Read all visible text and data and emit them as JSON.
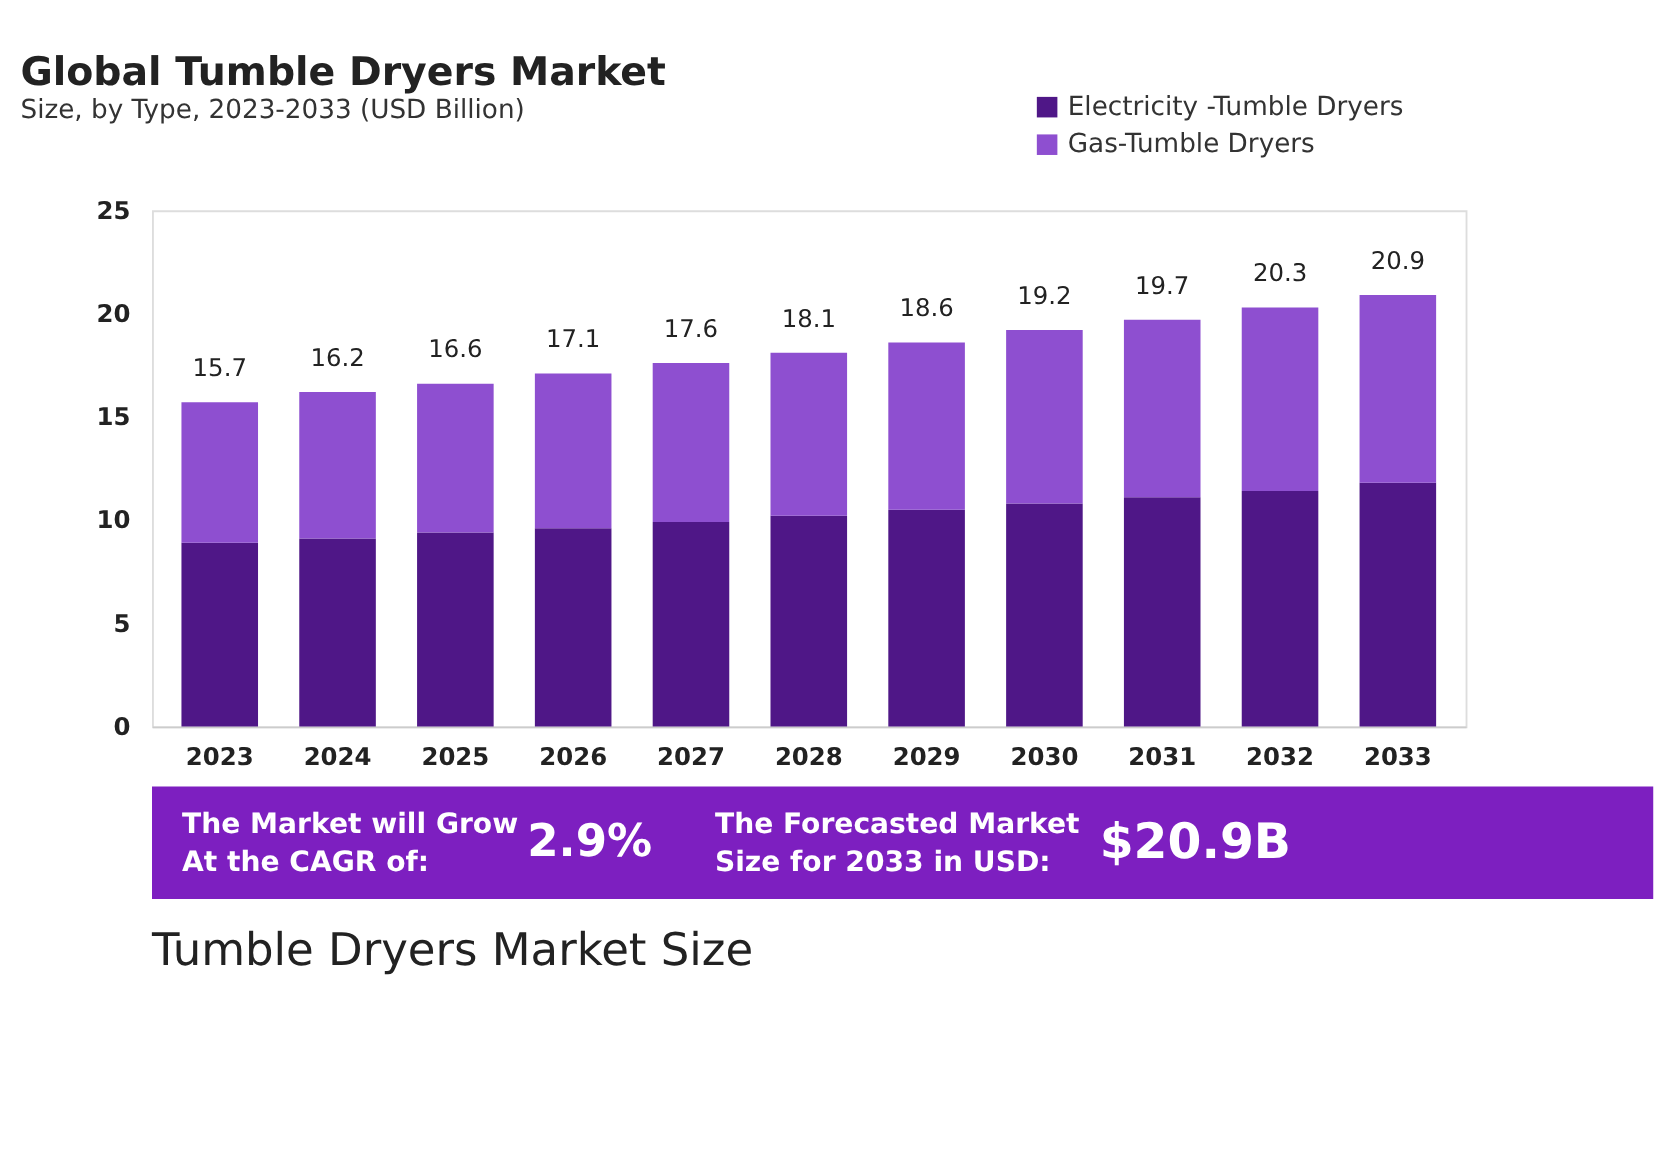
{
  "chart_data": {
    "type": "bar",
    "stacked": true,
    "title": "Global Tumble Dryers Market",
    "subtitle": "Size, by Type, 2023-2033 (USD Billion)",
    "categories": [
      "2023",
      "2024",
      "2025",
      "2026",
      "2027",
      "2028",
      "2029",
      "2030",
      "2031",
      "2032",
      "2033"
    ],
    "series": [
      {
        "name": "Electricity -Tumble Dryers",
        "color": "#4f1787",
        "values": [
          8.9,
          9.1,
          9.4,
          9.6,
          9.9,
          10.2,
          10.5,
          10.8,
          11.1,
          11.4,
          11.8
        ]
      },
      {
        "name": "Gas-Tumble Dryers",
        "color": "#8e4fd0",
        "values": [
          6.8,
          7.1,
          7.2,
          7.5,
          7.7,
          7.9,
          8.1,
          8.4,
          8.6,
          8.9,
          9.1
        ]
      }
    ],
    "totals": [
      "15.7",
      "16.2",
      "16.6",
      "17.1",
      "17.6",
      "18.1",
      "18.6",
      "19.2",
      "19.7",
      "20.3",
      "20.9"
    ],
    "ylim": [
      0,
      25
    ],
    "yticks": [
      0,
      5,
      10,
      15,
      20,
      25
    ],
    "grid": false,
    "legend": "top right",
    "annotations": [
      "The Market will Grow\nAt the CAGR of:",
      "2.9%",
      "The Forecasted Market\nSize for 2033 in USD:",
      "$20.9B",
      "Tumble Dryers Market Size"
    ]
  }
}
